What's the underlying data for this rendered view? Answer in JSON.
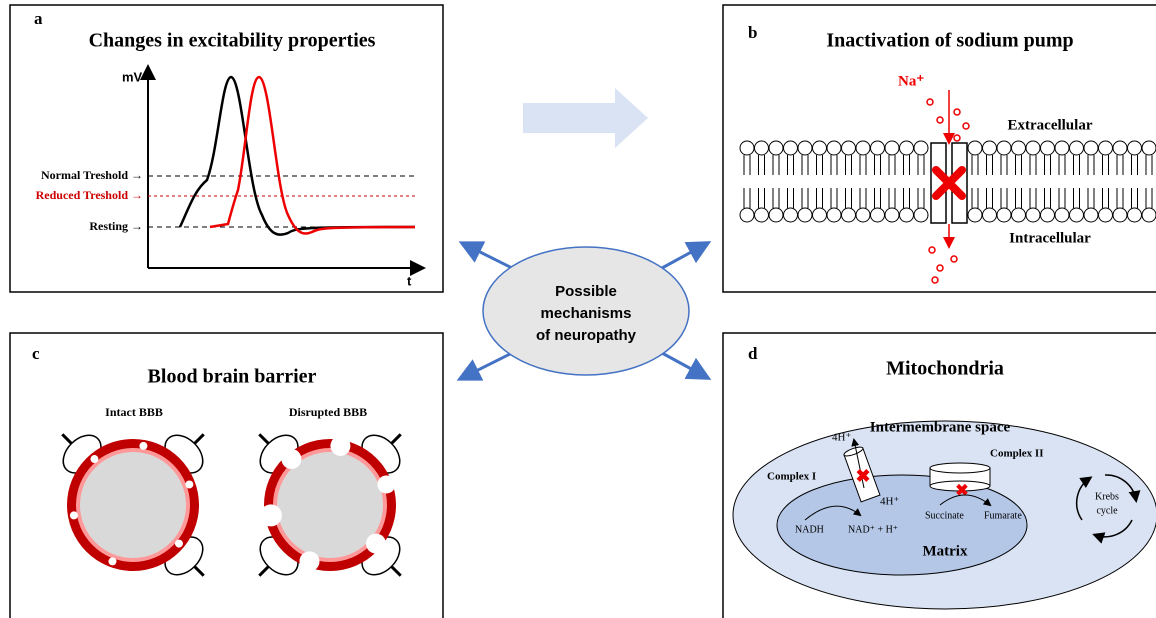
{
  "center": {
    "lines": [
      "Possible",
      "mechanisms",
      "of neuropathy"
    ]
  },
  "panels": {
    "a": {
      "letter": "a",
      "title": "Changes in excitability properties",
      "y_axis": "mV",
      "x_axis": "t",
      "levels": [
        "Normal Treshold →",
        "Reduced Treshold →",
        "Resting →"
      ]
    },
    "b": {
      "letter": "b",
      "title": "Inactivation of sodium pump",
      "ion": "Na⁺",
      "outside": "Extracellular",
      "inside": "Intracellular"
    },
    "c": {
      "letter": "c",
      "title": "Blood brain barrier",
      "labels": [
        "Intact BBB",
        "Disrupted BBB"
      ]
    },
    "d": {
      "letter": "d",
      "title": "Mitochondria",
      "space": "Intermembrane space",
      "proton_out": "4H⁺",
      "complex1": "Complex I",
      "complex2": "Complex II",
      "proton_in": "4H⁺",
      "nadh": "NADH",
      "nad": "NAD⁺ + H⁺",
      "succinate": "Succinate",
      "fumarate": "Fumarate",
      "matrix": "Matrix",
      "krebs": [
        "Krebs",
        "cycle"
      ]
    }
  }
}
